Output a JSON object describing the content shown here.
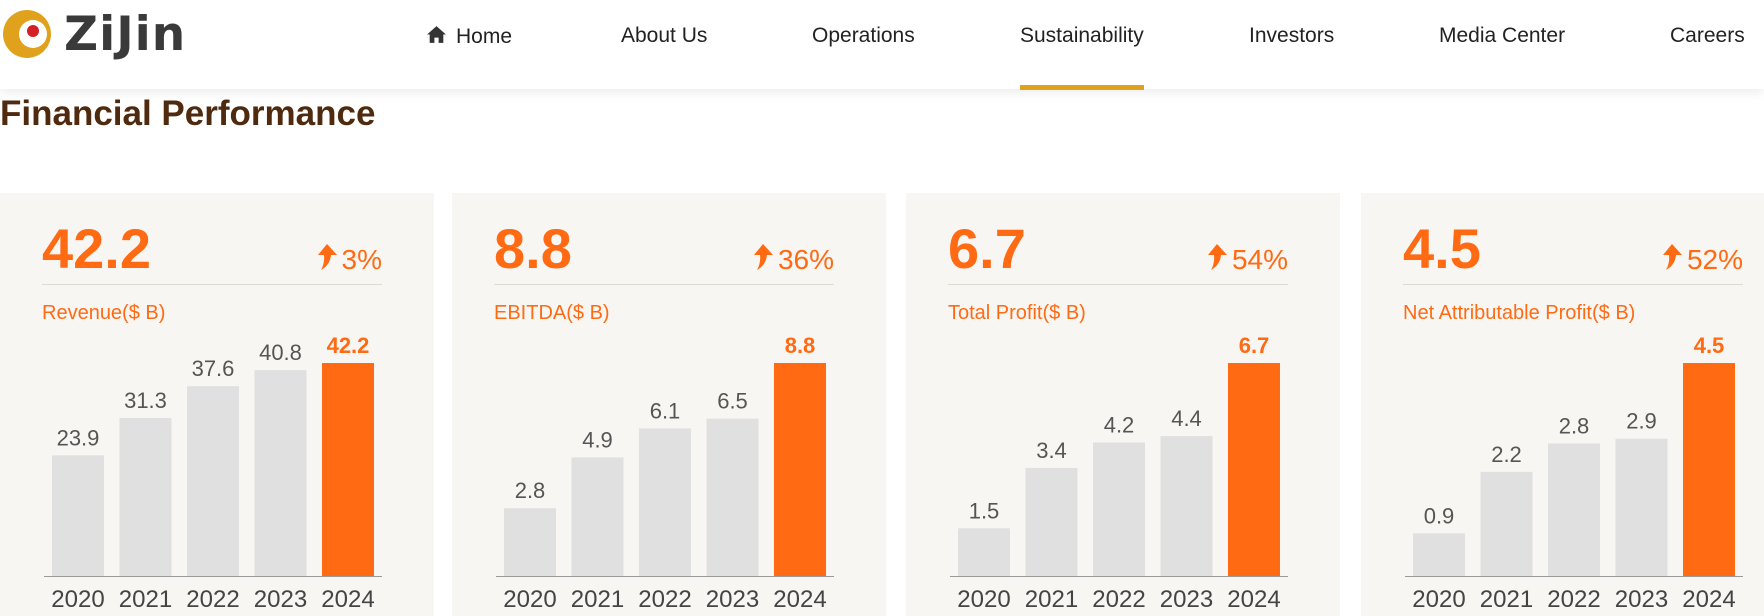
{
  "brand": {
    "name": "ZiJin",
    "primary": "#ff6a13",
    "title_color": "#4f2a0e",
    "logo_gold": "#e0a21c",
    "logo_red": "#d51f26"
  },
  "nav": {
    "items": [
      {
        "label": "Home",
        "icon": "home-icon"
      },
      {
        "label": "About Us"
      },
      {
        "label": "Operations"
      },
      {
        "label": "Sustainability",
        "active": true
      },
      {
        "label": "Investors"
      },
      {
        "label": "Media Center"
      },
      {
        "label": "Careers"
      }
    ]
  },
  "section": {
    "title": "Financial Performance"
  },
  "cards": [
    {
      "value": "42.2",
      "growth": "3%",
      "metric": "Revenue($ B)"
    },
    {
      "value": "8.8",
      "growth": "36%",
      "metric": "EBITDA($ B)"
    },
    {
      "value": "6.7",
      "growth": "54%",
      "metric": "Total Profit($ B)"
    },
    {
      "value": "4.5",
      "growth": "52%",
      "metric": "Net Attributable Profit($ B)"
    }
  ],
  "chart_data": [
    {
      "type": "bar",
      "title": "Revenue($ B)",
      "categories": [
        "2020",
        "2021",
        "2022",
        "2023",
        "2024"
      ],
      "values": [
        23.9,
        31.3,
        37.6,
        40.8,
        42.2
      ],
      "labels": [
        "23.9",
        "31.3",
        "37.6",
        "40.8",
        "42.2"
      ],
      "highlight_index": 4
    },
    {
      "type": "bar",
      "title": "EBITDA($ B)",
      "categories": [
        "2020",
        "2021",
        "2022",
        "2023",
        "2024"
      ],
      "values": [
        2.8,
        4.9,
        6.1,
        6.5,
        8.8
      ],
      "labels": [
        "2.8",
        "4.9",
        "6.1",
        "6.5",
        "8.8"
      ],
      "highlight_index": 4
    },
    {
      "type": "bar",
      "title": "Total Profit($ B)",
      "categories": [
        "2020",
        "2021",
        "2022",
        "2023",
        "2024"
      ],
      "values": [
        1.5,
        3.4,
        4.2,
        4.4,
        6.7
      ],
      "labels": [
        "1.5",
        "3.4",
        "4.2",
        "4.4",
        "6.7"
      ],
      "highlight_index": 4
    },
    {
      "type": "bar",
      "title": "Net Attributable Profit($ B)",
      "categories": [
        "2020",
        "2021",
        "2022",
        "2023",
        "2024"
      ],
      "values": [
        0.9,
        2.2,
        2.8,
        2.9,
        4.5
      ],
      "labels": [
        "0.9",
        "2.2",
        "2.8",
        "2.9",
        "4.5"
      ],
      "highlight_index": 4
    }
  ]
}
